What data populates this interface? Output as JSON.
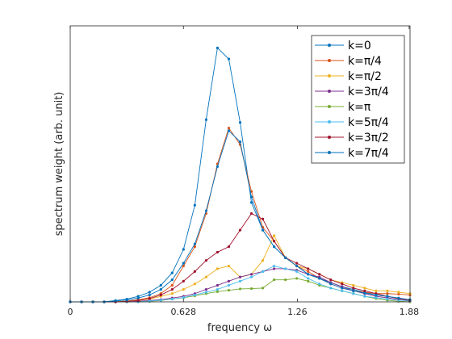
{
  "chart_data": {
    "type": "line",
    "title": "",
    "xlabel": "frequency ω",
    "ylabel": "spectrum weight     (arb. unit)",
    "xlim": [
      0,
      1.885
    ],
    "ylim": [
      0,
      1.0
    ],
    "x_ticks": [
      0,
      0.628,
      1.26,
      1.88
    ],
    "x_tick_labels": [
      "0",
      "0.628",
      "1.26",
      "1.88"
    ],
    "y_ticks_shown": false,
    "grid": false,
    "legend_position": "top-right",
    "x": [
      0.0,
      0.0628,
      0.1257,
      0.1885,
      0.2513,
      0.3142,
      0.377,
      0.4398,
      0.5027,
      0.5655,
      0.6283,
      0.6912,
      0.754,
      0.8168,
      0.8796,
      0.9425,
      1.0053,
      1.0681,
      1.131,
      1.1938,
      1.2566,
      1.3195,
      1.3823,
      1.4451,
      1.508,
      1.5708,
      1.6336,
      1.6965,
      1.7593,
      1.8221,
      1.885
    ],
    "series": [
      {
        "name": "k=0",
        "color": "#0072BD",
        "values": [
          0,
          0,
          0,
          0,
          0.005,
          0.01,
          0.02,
          0.035,
          0.06,
          0.105,
          0.19,
          0.35,
          0.66,
          0.92,
          0.88,
          0.65,
          0.36,
          0.26,
          0.2,
          0.16,
          0.13,
          0.1,
          0.085,
          0.07,
          0.055,
          0.045,
          0.035,
          0.025,
          0.02,
          0.012,
          0.005
        ]
      },
      {
        "name": "k=π/4",
        "color": "#D95319",
        "values": [
          0,
          0,
          0,
          0,
          0,
          0.003,
          0.008,
          0.015,
          0.03,
          0.06,
          0.13,
          0.2,
          0.32,
          0.5,
          0.63,
          0.57,
          0.4,
          0.27,
          0.22,
          0.16,
          0.13,
          0.11,
          0.085,
          0.065,
          0.05,
          0.04,
          0.035,
          0.03,
          0.03,
          0.028,
          0.025
        ]
      },
      {
        "name": "k=π/2",
        "color": "#EDB120",
        "values": [
          0,
          0,
          0,
          0,
          0,
          0.002,
          0.005,
          0.01,
          0.02,
          0.03,
          0.045,
          0.065,
          0.09,
          0.12,
          0.13,
          0.09,
          0.1,
          0.15,
          0.24,
          0.16,
          0.13,
          0.12,
          0.1,
          0.08,
          0.07,
          0.06,
          0.05,
          0.04,
          0.04,
          0.035,
          0.03
        ]
      },
      {
        "name": "k=3π/4",
        "color": "#7E2F8E",
        "values": [
          0,
          0,
          0,
          0,
          0,
          0,
          0.002,
          0.005,
          0.008,
          0.014,
          0.02,
          0.03,
          0.045,
          0.06,
          0.075,
          0.09,
          0.1,
          0.11,
          0.12,
          0.12,
          0.115,
          0.1,
          0.09,
          0.07,
          0.055,
          0.04,
          0.03,
          0.02,
          0.015,
          0.008,
          0.003
        ]
      },
      {
        "name": "k=π",
        "color": "#77AC30",
        "values": [
          0,
          0,
          0,
          0,
          0,
          0,
          0,
          0.002,
          0.005,
          0.01,
          0.015,
          0.022,
          0.03,
          0.037,
          0.042,
          0.047,
          0.048,
          0.05,
          0.08,
          0.08,
          0.085,
          0.075,
          0.06,
          0.05,
          0.04,
          0.03,
          0.02,
          0.012,
          0.006,
          0.002,
          0
        ]
      },
      {
        "name": "k=5π/4",
        "color": "#4DBEEE",
        "values": [
          0,
          0,
          0,
          0,
          0,
          0,
          0,
          0.003,
          0.006,
          0.01,
          0.016,
          0.025,
          0.035,
          0.045,
          0.06,
          0.075,
          0.09,
          0.11,
          0.13,
          0.12,
          0.11,
          0.085,
          0.065,
          0.05,
          0.04,
          0.03,
          0.02,
          0.015,
          0.01,
          0.006,
          0.003
        ]
      },
      {
        "name": "k=3π/2",
        "color": "#A2142F",
        "values": [
          0,
          0,
          0,
          0,
          0,
          0.002,
          0.005,
          0.012,
          0.025,
          0.045,
          0.075,
          0.11,
          0.15,
          0.18,
          0.2,
          0.26,
          0.32,
          0.3,
          0.22,
          0.16,
          0.14,
          0.12,
          0.1,
          0.08,
          0.065,
          0.05,
          0.04,
          0.03,
          0.02,
          0.012,
          0.005
        ]
      },
      {
        "name": "k=7π/4",
        "color": "#0072BD",
        "values": [
          0,
          0,
          0,
          0,
          0.003,
          0.007,
          0.014,
          0.025,
          0.045,
          0.08,
          0.14,
          0.21,
          0.33,
          0.49,
          0.62,
          0.58,
          0.38,
          0.26,
          0.2,
          0.16,
          0.13,
          0.1,
          0.085,
          0.065,
          0.05,
          0.04,
          0.032,
          0.025,
          0.02,
          0.014,
          0.008
        ]
      }
    ]
  }
}
